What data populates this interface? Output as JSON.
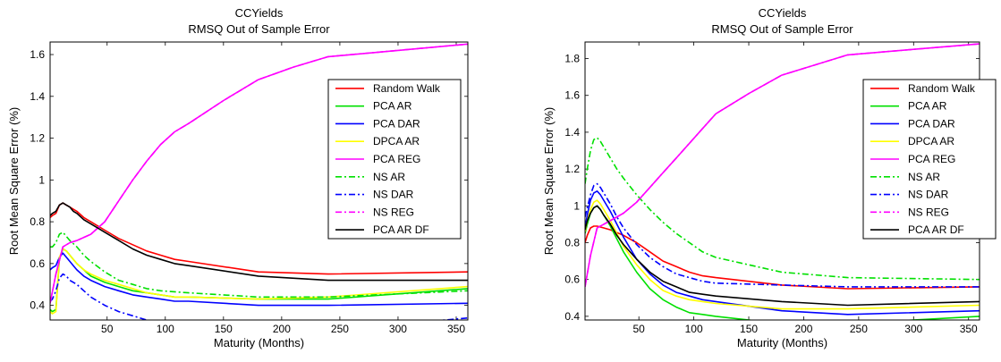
{
  "chart_data": [
    {
      "type": "line",
      "title": "CCYields",
      "subtitle": "RMSQ Out of Sample Error",
      "xlabel": "Maturity (Months)",
      "ylabel": "Root Mean Square Error (%)",
      "xlim": [
        1,
        360
      ],
      "ylim": [
        0.33,
        1.66
      ],
      "xticks": [
        50,
        100,
        150,
        200,
        250,
        300,
        350
      ],
      "yticks": [
        0.4,
        0.6,
        0.8,
        1,
        1.2,
        1.4,
        1.6
      ],
      "ytick_labels": [
        "0.4",
        "0.6",
        "0.8",
        "1",
        "1.2",
        "1.4",
        "1.6"
      ],
      "grid": false,
      "legend_position": "top-right",
      "series": [
        {
          "name": "Random Walk",
          "color": "#ff0000",
          "dash": "solid",
          "x": [
            1,
            3,
            6,
            9,
            12,
            15,
            18,
            21,
            24,
            30,
            36,
            48,
            60,
            72,
            84,
            96,
            108,
            120,
            180,
            240,
            360
          ],
          "y": [
            0.82,
            0.83,
            0.84,
            0.88,
            0.89,
            0.88,
            0.87,
            0.86,
            0.85,
            0.82,
            0.8,
            0.76,
            0.72,
            0.69,
            0.66,
            0.64,
            0.62,
            0.61,
            0.56,
            0.55,
            0.56
          ]
        },
        {
          "name": "PCA AR",
          "color": "#00e000",
          "dash": "solid",
          "x": [
            1,
            3,
            6,
            9,
            12,
            15,
            18,
            21,
            24,
            30,
            36,
            48,
            60,
            72,
            84,
            96,
            108,
            120,
            180,
            240,
            360
          ],
          "y": [
            0.38,
            0.37,
            0.38,
            0.62,
            0.67,
            0.66,
            0.64,
            0.62,
            0.6,
            0.57,
            0.54,
            0.51,
            0.49,
            0.47,
            0.46,
            0.45,
            0.44,
            0.44,
            0.43,
            0.43,
            0.48
          ]
        },
        {
          "name": "PCA DAR",
          "color": "#0000ff",
          "dash": "solid",
          "x": [
            1,
            3,
            6,
            9,
            12,
            15,
            18,
            21,
            24,
            30,
            36,
            48,
            60,
            72,
            84,
            96,
            108,
            120,
            180,
            240,
            360
          ],
          "y": [
            0.57,
            0.58,
            0.59,
            0.63,
            0.65,
            0.63,
            0.61,
            0.59,
            0.57,
            0.54,
            0.52,
            0.49,
            0.47,
            0.45,
            0.44,
            0.43,
            0.42,
            0.42,
            0.4,
            0.4,
            0.41
          ]
        },
        {
          "name": "DPCA AR",
          "color": "#ffff00",
          "dash": "solid",
          "x": [
            1,
            3,
            6,
            9,
            12,
            15,
            18,
            21,
            24,
            30,
            36,
            48,
            60,
            72,
            84,
            96,
            108,
            120,
            180,
            240,
            360
          ],
          "y": [
            0.37,
            0.36,
            0.37,
            0.63,
            0.67,
            0.66,
            0.64,
            0.62,
            0.6,
            0.57,
            0.55,
            0.52,
            0.5,
            0.48,
            0.46,
            0.45,
            0.44,
            0.44,
            0.43,
            0.44,
            0.49
          ]
        },
        {
          "name": "PCA REG",
          "color": "#ff00ff",
          "dash": "solid",
          "x": [
            1,
            6,
            12,
            18,
            24,
            36,
            48,
            60,
            72,
            84,
            96,
            108,
            120,
            150,
            180,
            210,
            240,
            300,
            360
          ],
          "y": [
            0.41,
            0.55,
            0.68,
            0.7,
            0.71,
            0.74,
            0.8,
            0.9,
            1.0,
            1.09,
            1.17,
            1.23,
            1.27,
            1.38,
            1.48,
            1.54,
            1.59,
            1.62,
            1.65
          ]
        },
        {
          "name": "NS AR",
          "color": "#00e000",
          "dash": "dashdot",
          "x": [
            1,
            3,
            6,
            9,
            12,
            15,
            18,
            24,
            30,
            36,
            48,
            60,
            72,
            84,
            96,
            120,
            180,
            240,
            360
          ],
          "y": [
            0.68,
            0.68,
            0.7,
            0.74,
            0.75,
            0.73,
            0.71,
            0.68,
            0.64,
            0.61,
            0.56,
            0.52,
            0.5,
            0.48,
            0.47,
            0.46,
            0.44,
            0.44,
            0.47
          ]
        },
        {
          "name": "NS DAR",
          "color": "#0000ff",
          "dash": "dashdot",
          "x": [
            1,
            3,
            6,
            9,
            12,
            15,
            18,
            24,
            30,
            36,
            48,
            60,
            72,
            84,
            96,
            120,
            150,
            180,
            240,
            300,
            360
          ],
          "y": [
            0.42,
            0.43,
            0.47,
            0.53,
            0.55,
            0.54,
            0.52,
            0.5,
            0.47,
            0.44,
            0.4,
            0.37,
            0.35,
            0.33,
            0.32,
            0.31,
            0.295,
            0.29,
            0.29,
            0.31,
            0.34
          ]
        },
        {
          "name": "NS REG",
          "color": "#ff00ff",
          "dash": "dashdot",
          "x": [
            1,
            6,
            12,
            18,
            24,
            36,
            48,
            60,
            72,
            84,
            96,
            108,
            120,
            150,
            180,
            210,
            240,
            300,
            360
          ],
          "y": [
            0.41,
            0.55,
            0.68,
            0.7,
            0.71,
            0.74,
            0.8,
            0.9,
            1.0,
            1.09,
            1.17,
            1.23,
            1.27,
            1.38,
            1.48,
            1.54,
            1.59,
            1.62,
            1.65
          ]
        },
        {
          "name": "PCA AR DF",
          "color": "#000000",
          "dash": "solid",
          "x": [
            1,
            3,
            6,
            9,
            12,
            15,
            18,
            21,
            24,
            30,
            36,
            48,
            60,
            72,
            84,
            96,
            108,
            120,
            180,
            240,
            360
          ],
          "y": [
            0.83,
            0.84,
            0.85,
            0.88,
            0.89,
            0.88,
            0.87,
            0.85,
            0.84,
            0.81,
            0.79,
            0.75,
            0.71,
            0.67,
            0.64,
            0.62,
            0.6,
            0.59,
            0.54,
            0.52,
            0.52
          ]
        }
      ]
    },
    {
      "type": "line",
      "title": "CCYields",
      "subtitle": "RMSQ Out of Sample Error",
      "xlabel": "Maturity (Months)",
      "ylabel": "Root Mean Square Error (%)",
      "xlim": [
        1,
        360
      ],
      "ylim": [
        0.38,
        1.89
      ],
      "xticks": [
        50,
        100,
        150,
        200,
        250,
        300,
        350
      ],
      "yticks": [
        0.4,
        0.6,
        0.8,
        1,
        1.2,
        1.4,
        1.6,
        1.8
      ],
      "ytick_labels": [
        "0.4",
        "0.6",
        "0.8",
        "1",
        "1.2",
        "1.4",
        "1.6",
        "1.8"
      ],
      "grid": false,
      "legend_position": "top-right",
      "series": [
        {
          "name": "Random Walk",
          "color": "#ff0000",
          "dash": "solid",
          "x": [
            1,
            3,
            6,
            9,
            12,
            18,
            24,
            36,
            48,
            60,
            72,
            84,
            96,
            108,
            120,
            180,
            240,
            360
          ],
          "y": [
            0.8,
            0.84,
            0.88,
            0.89,
            0.89,
            0.88,
            0.87,
            0.84,
            0.8,
            0.75,
            0.7,
            0.67,
            0.64,
            0.62,
            0.61,
            0.57,
            0.55,
            0.56
          ]
        },
        {
          "name": "PCA AR",
          "color": "#00e000",
          "dash": "solid",
          "x": [
            1,
            3,
            6,
            9,
            12,
            15,
            18,
            24,
            30,
            36,
            48,
            60,
            72,
            84,
            96,
            108,
            120,
            180,
            240,
            360
          ],
          "y": [
            0.85,
            0.9,
            0.96,
            0.99,
            1.0,
            0.98,
            0.95,
            0.89,
            0.82,
            0.75,
            0.64,
            0.55,
            0.49,
            0.45,
            0.42,
            0.41,
            0.4,
            0.36,
            0.36,
            0.4
          ]
        },
        {
          "name": "PCA DAR",
          "color": "#0000ff",
          "dash": "solid",
          "x": [
            1,
            3,
            6,
            9,
            12,
            15,
            18,
            24,
            30,
            36,
            48,
            60,
            72,
            84,
            96,
            108,
            120,
            180,
            240,
            360
          ],
          "y": [
            0.88,
            0.95,
            1.03,
            1.07,
            1.08,
            1.06,
            1.03,
            0.97,
            0.9,
            0.83,
            0.71,
            0.63,
            0.57,
            0.53,
            0.51,
            0.49,
            0.48,
            0.43,
            0.41,
            0.43
          ]
        },
        {
          "name": "DPCA AR",
          "color": "#ffff00",
          "dash": "solid",
          "x": [
            1,
            3,
            6,
            9,
            12,
            15,
            18,
            24,
            30,
            36,
            48,
            60,
            72,
            84,
            96,
            108,
            120,
            180,
            240,
            360
          ],
          "y": [
            0.86,
            0.92,
            0.98,
            1.02,
            1.03,
            1.01,
            0.98,
            0.92,
            0.85,
            0.78,
            0.68,
            0.6,
            0.54,
            0.51,
            0.49,
            0.48,
            0.47,
            0.44,
            0.44,
            0.46
          ]
        },
        {
          "name": "PCA REG",
          "color": "#ff00ff",
          "dash": "solid",
          "x": [
            1,
            6,
            12,
            18,
            24,
            36,
            48,
            60,
            72,
            84,
            96,
            108,
            120,
            150,
            180,
            240,
            300,
            360
          ],
          "y": [
            0.56,
            0.73,
            0.88,
            0.9,
            0.92,
            0.96,
            1.02,
            1.1,
            1.18,
            1.26,
            1.34,
            1.42,
            1.5,
            1.61,
            1.71,
            1.82,
            1.85,
            1.88
          ]
        },
        {
          "name": "NS AR",
          "color": "#00e000",
          "dash": "dashdot",
          "x": [
            1,
            3,
            6,
            9,
            12,
            15,
            18,
            24,
            30,
            36,
            48,
            60,
            72,
            84,
            96,
            108,
            120,
            180,
            240,
            360
          ],
          "y": [
            1.12,
            1.2,
            1.3,
            1.36,
            1.37,
            1.35,
            1.32,
            1.26,
            1.2,
            1.15,
            1.06,
            0.98,
            0.91,
            0.85,
            0.8,
            0.75,
            0.72,
            0.64,
            0.61,
            0.6
          ]
        },
        {
          "name": "NS DAR",
          "color": "#0000ff",
          "dash": "dashdot",
          "x": [
            1,
            3,
            6,
            9,
            12,
            15,
            18,
            24,
            30,
            36,
            48,
            60,
            72,
            84,
            96,
            108,
            120,
            180,
            240,
            360
          ],
          "y": [
            0.94,
            0.99,
            1.06,
            1.11,
            1.12,
            1.1,
            1.07,
            1.01,
            0.94,
            0.88,
            0.79,
            0.72,
            0.67,
            0.63,
            0.61,
            0.59,
            0.58,
            0.57,
            0.56,
            0.56
          ]
        },
        {
          "name": "NS REG",
          "color": "#ff00ff",
          "dash": "dashdot",
          "x": [
            1,
            6,
            12,
            18,
            24,
            36,
            48,
            60,
            72,
            84,
            96,
            108,
            120,
            150,
            180,
            240,
            300,
            360
          ],
          "y": [
            0.56,
            0.73,
            0.88,
            0.9,
            0.92,
            0.96,
            1.02,
            1.1,
            1.18,
            1.26,
            1.34,
            1.42,
            1.5,
            1.61,
            1.71,
            1.82,
            1.85,
            1.88
          ]
        },
        {
          "name": "PCA AR DF",
          "color": "#000000",
          "dash": "solid",
          "x": [
            1,
            3,
            6,
            9,
            12,
            15,
            18,
            24,
            30,
            36,
            48,
            60,
            72,
            84,
            96,
            108,
            120,
            180,
            240,
            360
          ],
          "y": [
            0.87,
            0.92,
            0.96,
            0.99,
            1.0,
            0.98,
            0.95,
            0.9,
            0.84,
            0.79,
            0.71,
            0.64,
            0.59,
            0.56,
            0.53,
            0.52,
            0.51,
            0.48,
            0.46,
            0.48
          ]
        }
      ]
    }
  ]
}
